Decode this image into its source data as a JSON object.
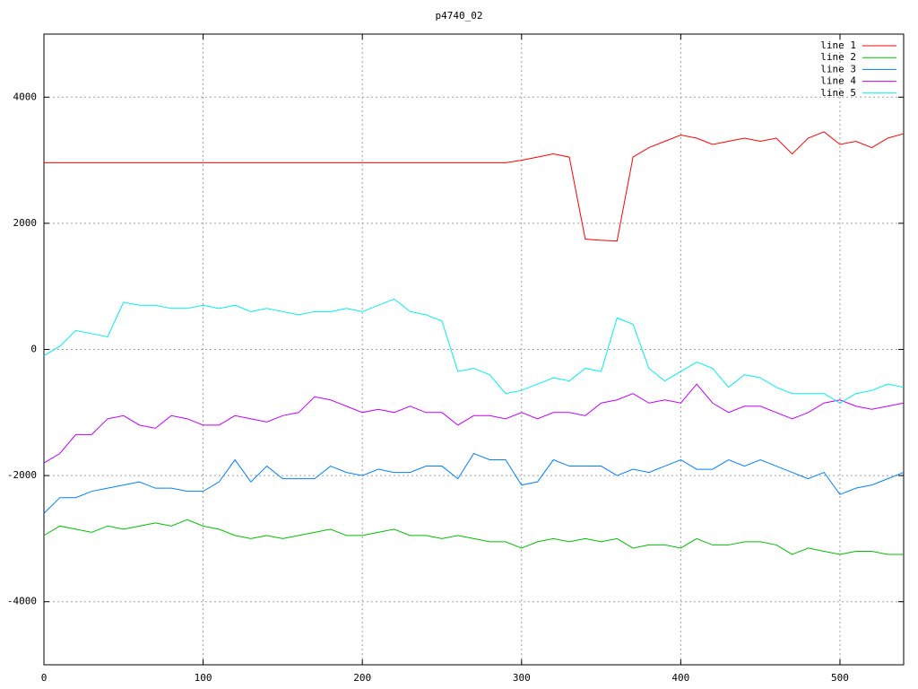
{
  "chart_data": {
    "type": "line",
    "title": "p4740_02",
    "x": [
      0,
      10,
      20,
      30,
      40,
      50,
      60,
      70,
      80,
      90,
      100,
      110,
      120,
      130,
      140,
      150,
      160,
      170,
      180,
      190,
      200,
      210,
      220,
      230,
      240,
      250,
      260,
      270,
      280,
      290,
      300,
      310,
      320,
      330,
      340,
      350,
      360,
      370,
      380,
      390,
      400,
      410,
      420,
      430,
      440,
      450,
      460,
      470,
      480,
      490,
      500,
      510,
      520,
      530,
      540
    ],
    "series": [
      {
        "name": "line 1",
        "color": "#ff0000",
        "values": [
          2960,
          2960,
          2960,
          2960,
          2960,
          2960,
          2960,
          2960,
          2960,
          2960,
          2960,
          2960,
          2960,
          2960,
          2960,
          2960,
          2960,
          2960,
          2960,
          2960,
          2960,
          2960,
          2960,
          2960,
          2960,
          2960,
          2960,
          2960,
          2960,
          2960,
          3000,
          3050,
          3100,
          3050,
          1750,
          1730,
          1720,
          3050,
          3200,
          3300,
          3400,
          3350,
          3250,
          3300,
          3350,
          3300,
          3350,
          3100,
          3350,
          3450,
          3250,
          3300,
          3200,
          3350,
          3420
        ]
      },
      {
        "name": "line 2",
        "color": "#00c000",
        "values": [
          -2950,
          -2800,
          -2850,
          -2900,
          -2800,
          -2850,
          -2800,
          -2750,
          -2800,
          -2700,
          -2800,
          -2850,
          -2950,
          -3000,
          -2950,
          -3000,
          -2950,
          -2900,
          -2850,
          -2950,
          -2950,
          -2900,
          -2850,
          -2950,
          -2950,
          -3000,
          -2950,
          -3000,
          -3050,
          -3050,
          -3150,
          -3050,
          -3000,
          -3050,
          -3000,
          -3050,
          -3000,
          -3150,
          -3100,
          -3100,
          -3150,
          -3000,
          -3100,
          -3100,
          -3050,
          -3050,
          -3100,
          -3250,
          -3150,
          -3200,
          -3250,
          -3200,
          -3200,
          -3250,
          -3250
        ]
      },
      {
        "name": "line 3",
        "color": "#0080ff",
        "values": [
          -2600,
          -2350,
          -2350,
          -2250,
          -2200,
          -2150,
          -2100,
          -2200,
          -2200,
          -2250,
          -2250,
          -2100,
          -1750,
          -2100,
          -1850,
          -2050,
          -2050,
          -2050,
          -1850,
          -1950,
          -2000,
          -1900,
          -1950,
          -1950,
          -1850,
          -1850,
          -2050,
          -1650,
          -1750,
          -1750,
          -2150,
          -2100,
          -1750,
          -1850,
          -1850,
          -1850,
          -2000,
          -1900,
          -1950,
          -1850,
          -1750,
          -1900,
          -1900,
          -1750,
          -1850,
          -1750,
          -1850,
          -1950,
          -2050,
          -1950,
          -2300,
          -2200,
          -2150,
          -2050,
          -1950
        ]
      },
      {
        "name": "line 4",
        "color": "#c000ff",
        "values": [
          -1800,
          -1650,
          -1350,
          -1350,
          -1100,
          -1050,
          -1200,
          -1250,
          -1050,
          -1100,
          -1200,
          -1200,
          -1050,
          -1100,
          -1150,
          -1050,
          -1000,
          -750,
          -800,
          -900,
          -1000,
          -950,
          -1000,
          -900,
          -1000,
          -1000,
          -1200,
          -1050,
          -1050,
          -1100,
          -1000,
          -1100,
          -1000,
          -1000,
          -1050,
          -850,
          -800,
          -700,
          -850,
          -800,
          -850,
          -550,
          -850,
          -1000,
          -900,
          -900,
          -1000,
          -1100,
          -1000,
          -850,
          -800,
          -900,
          -950,
          -900,
          -850
        ]
      },
      {
        "name": "line 5",
        "color": "#00eeee",
        "values": [
          -100,
          50,
          300,
          250,
          200,
          750,
          700,
          700,
          650,
          650,
          700,
          650,
          700,
          600,
          650,
          600,
          550,
          600,
          600,
          650,
          600,
          700,
          800,
          600,
          550,
          450,
          -350,
          -300,
          -400,
          -700,
          -650,
          -550,
          -450,
          -500,
          -300,
          -350,
          500,
          400,
          -300,
          -500,
          -350,
          -200,
          -300,
          -600,
          -400,
          -450,
          -600,
          -700,
          -700,
          -700,
          -850,
          -700,
          -650,
          -550,
          -600
        ]
      }
    ],
    "xlim": [
      0,
      540
    ],
    "xticks": [
      0,
      100,
      200,
      300,
      400,
      500
    ],
    "ylim": [
      -5000,
      5000
    ],
    "yticks": [
      -4000,
      -2000,
      0,
      2000,
      4000
    ],
    "grid": true,
    "legend": "top-right"
  }
}
